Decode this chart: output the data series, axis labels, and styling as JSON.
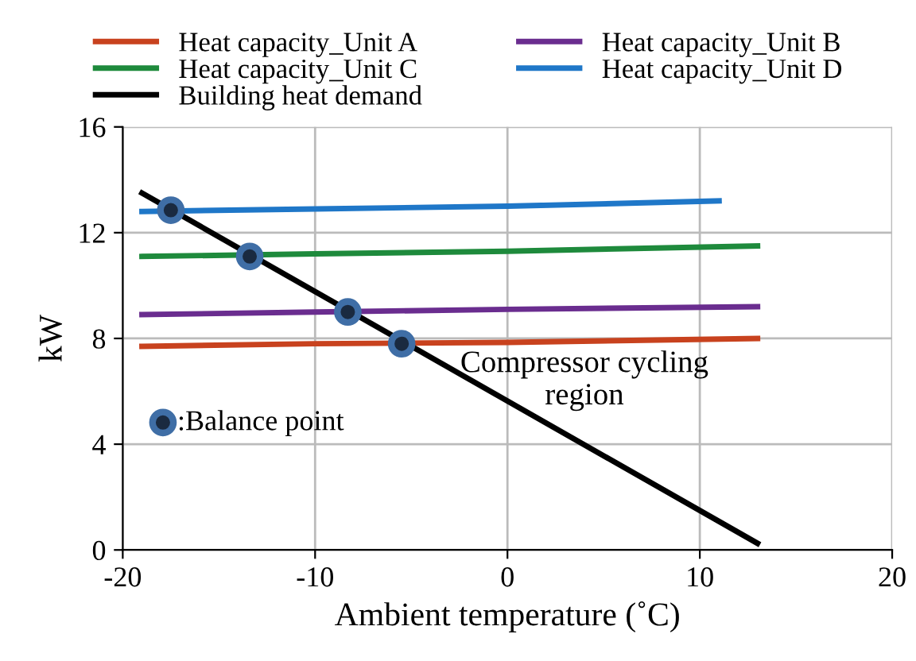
{
  "chart_data": {
    "type": "line",
    "xlabel": "Ambient temperature (˚C)",
    "ylabel": "kW",
    "xlim": [
      -20,
      20
    ],
    "xticks": [
      -20,
      -10,
      0,
      10,
      20
    ],
    "ylim": [
      0,
      16
    ],
    "yticks": [
      0,
      4,
      8,
      12,
      16
    ],
    "grid": true,
    "legend": "top",
    "marker": "none",
    "line_style": "solid",
    "series": [
      {
        "name": "Heat capacity_Unit A",
        "color": "#c8421e",
        "x": [
          -19,
          -10,
          0,
          13
        ],
        "values": [
          7.7,
          7.8,
          7.85,
          8.0
        ]
      },
      {
        "name": "Heat capacity_Unit B",
        "color": "#6a2d8f",
        "x": [
          -19,
          -10,
          0,
          13
        ],
        "values": [
          8.9,
          9.0,
          9.1,
          9.2
        ]
      },
      {
        "name": "Heat capacity_Unit C",
        "color": "#1e8a3c",
        "x": [
          -19,
          -10,
          0,
          13
        ],
        "values": [
          11.1,
          11.2,
          11.3,
          11.5
        ]
      },
      {
        "name": "Heat capacity_Unit D",
        "color": "#1f77c8",
        "x": [
          -19,
          -10,
          0,
          11
        ],
        "values": [
          12.8,
          12.9,
          13.0,
          13.2
        ]
      },
      {
        "name": "Building heat demand",
        "color": "#000000",
        "x": [
          -19,
          13
        ],
        "values": [
          13.5,
          0.25
        ]
      },
      {
        "name": ":Balance point",
        "type": "scatter",
        "marker": "circle",
        "color": "#3f6ea6",
        "x": [
          -17.5,
          -13.4,
          -8.3,
          -5.5
        ],
        "values": [
          12.85,
          11.1,
          9.0,
          7.8
        ]
      }
    ],
    "annotations": [
      "Compressor cycling\nregion"
    ]
  }
}
